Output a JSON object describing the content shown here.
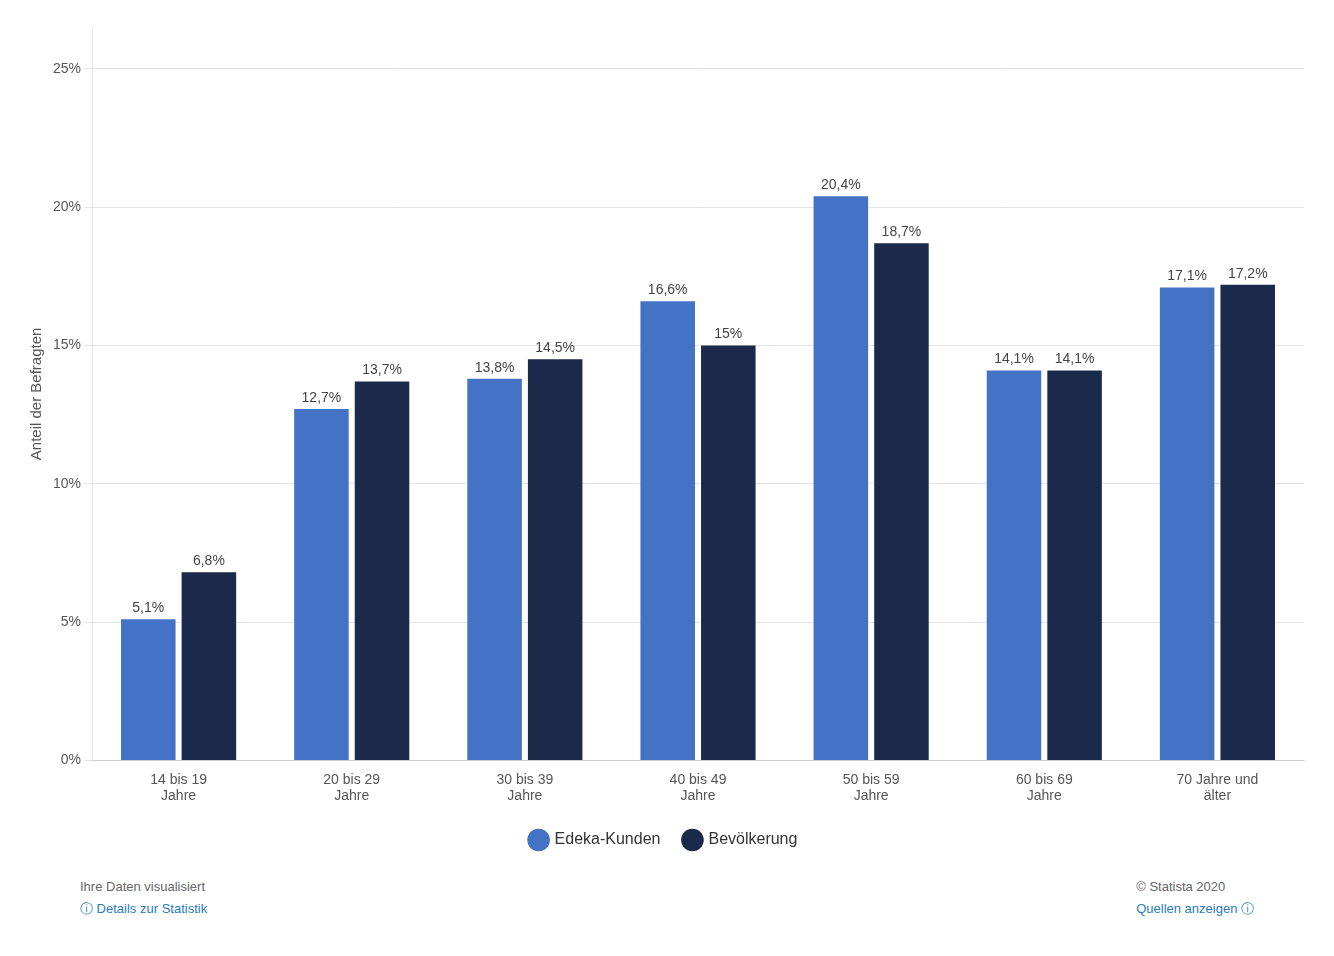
{
  "chart_data": {
    "type": "bar",
    "categories": [
      "14 bis 19\nJahre",
      "20 bis 29\nJahre",
      "30 bis 39\nJahre",
      "40 bis 49\nJahre",
      "50 bis 59\nJahre",
      "60 bis 69\nJahre",
      "70 Jahre und\nälter"
    ],
    "series": [
      {
        "name": "Edeka-Kunden",
        "color": "#4472C4",
        "values": [
          5.1,
          12.7,
          13.8,
          16.6,
          20.4,
          14.1,
          17.1
        ],
        "value_labels": [
          "5,1%",
          "12,7%",
          "13,8%",
          "16,6%",
          "20,4%",
          "14,1%",
          "17,1%"
        ]
      },
      {
        "name": "Bevölkerung",
        "color": "#1B2A4A",
        "values": [
          6.8,
          13.7,
          14.5,
          15.0,
          18.7,
          14.1,
          17.2
        ],
        "value_labels": [
          "6,8%",
          "13,7%",
          "14,5%",
          "15%",
          "18,7%",
          "14,1%",
          "17,2%"
        ]
      }
    ],
    "ylabel": "Anteil der Befragten",
    "ylim": [
      0,
      26.5
    ],
    "yticks": [
      {
        "value": 0,
        "label": "0%"
      },
      {
        "value": 5,
        "label": "5%"
      },
      {
        "value": 10,
        "label": "10%"
      },
      {
        "value": 15,
        "label": "15%"
      },
      {
        "value": 20,
        "label": "20%"
      },
      {
        "value": 25,
        "label": "25%"
      }
    ],
    "grid": true,
    "legend": "bottom",
    "data_labels": true,
    "annotations": [
      "Ihre Daten visualisiert",
      "ⓘ Details zur Statistik",
      "© Statista 2020",
      "Quellen anzeigen ⓘ"
    ]
  }
}
